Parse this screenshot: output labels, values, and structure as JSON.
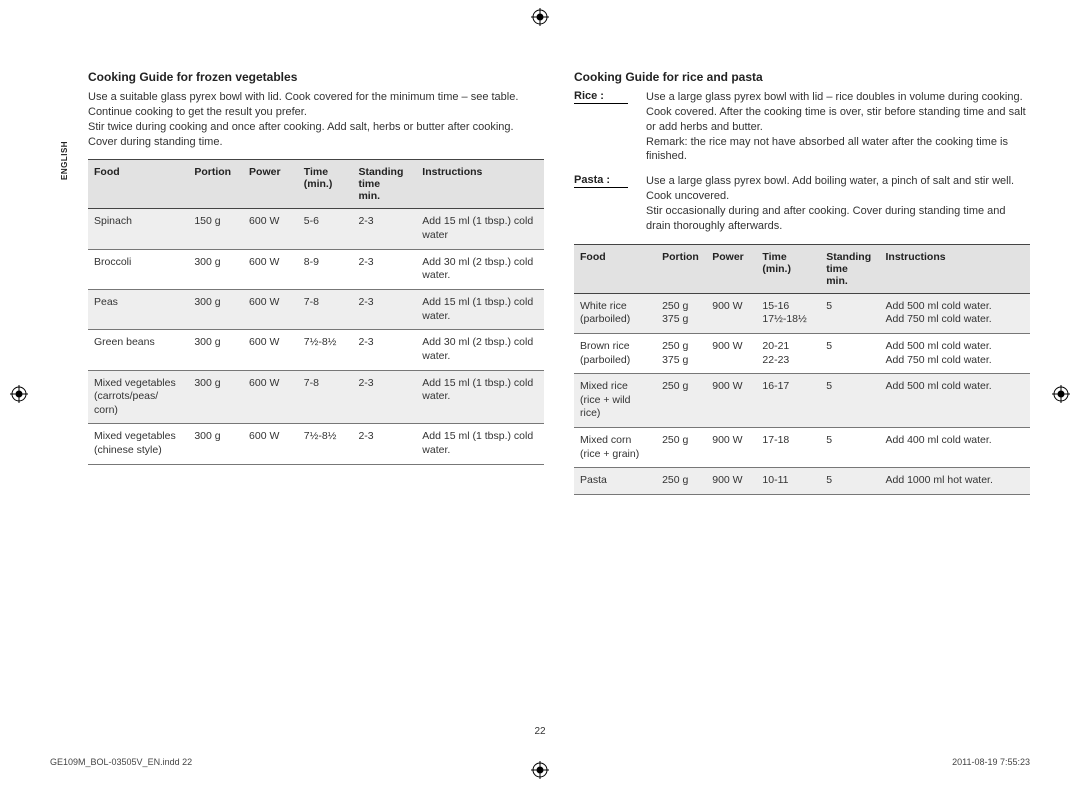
{
  "sidebar_language": "ENGLISH",
  "page_number": "22",
  "footer": {
    "file": "GE109M_BOL-03505V_EN.indd   22",
    "timestamp": "2011-08-19   7:55:23"
  },
  "crop_mark_color": "#000000",
  "left": {
    "title": "Cooking Guide for frozen vegetables",
    "intro": "Use a suitable glass pyrex bowl with lid. Cook covered for the minimum time – see table. Continue cooking to get the result you prefer.\nStir twice during cooking and once after cooking. Add salt, herbs or butter after cooking. Cover during standing time.",
    "table": {
      "columns": [
        "Food",
        "Portion",
        "Power",
        "Time\n(min.)",
        "Standing\ntime\nmin.",
        "Instructions"
      ],
      "col_widths": [
        "22%",
        "12%",
        "12%",
        "12%",
        "14%",
        "28%"
      ],
      "rows": [
        [
          "Spinach",
          "150 g",
          "600 W",
          "5-6",
          "2-3",
          "Add 15 ml (1 tbsp.) cold water"
        ],
        [
          "Broccoli",
          "300 g",
          "600 W",
          "8-9",
          "2-3",
          "Add 30 ml (2 tbsp.) cold water."
        ],
        [
          "Peas",
          "300 g",
          "600 W",
          "7-8",
          "2-3",
          "Add 15 ml (1 tbsp.) cold water."
        ],
        [
          "Green beans",
          "300 g",
          "600 W",
          "7½-8½",
          "2-3",
          "Add 30 ml (2 tbsp.) cold water."
        ],
        [
          "Mixed vegetables (carrots/peas/ corn)",
          "300 g",
          "600 W",
          "7-8",
          "2-3",
          "Add 15 ml (1 tbsp.) cold water."
        ],
        [
          "Mixed vegetables (chinese style)",
          "300 g",
          "600 W",
          "7½-8½",
          "2-3",
          "Add 15 ml (1 tbsp.) cold water."
        ]
      ]
    }
  },
  "right": {
    "title": "Cooking Guide for rice and pasta",
    "desc": [
      {
        "label": "Rice :",
        "text": "Use a large glass pyrex bowl with lid – rice doubles in volume during cooking. Cook covered. After the cooking time is over, stir before standing time and salt or add herbs and butter.\nRemark: the rice may not have absorbed all water after the cooking time is finished."
      },
      {
        "label": "Pasta :",
        "text": "Use a large glass pyrex bowl. Add boiling water, a pinch of salt and stir well. Cook uncovered.\nStir occasionally during and after cooking. Cover during standing time and drain thoroughly afterwards."
      }
    ],
    "table": {
      "columns": [
        "Food",
        "Portion",
        "Power",
        "Time\n(min.)",
        "Standing\ntime\nmin.",
        "Instructions"
      ],
      "col_widths": [
        "18%",
        "11%",
        "11%",
        "14%",
        "13%",
        "33%"
      ],
      "rows": [
        [
          "White rice (parboiled)",
          "250 g\n375 g",
          "900 W",
          "15-16\n17½-18½",
          "5",
          "Add 500 ml cold water.\nAdd 750 ml cold water."
        ],
        [
          "Brown rice (parboiled)",
          "250 g\n375 g",
          "900 W",
          "20-21\n22-23",
          "5",
          "Add 500 ml cold water.\nAdd 750 ml cold water."
        ],
        [
          "Mixed rice (rice + wild rice)",
          "250 g",
          "900 W",
          "16-17",
          "5",
          "Add 500 ml cold water."
        ],
        [
          "Mixed corn (rice + grain)",
          "250 g",
          "900 W",
          "17-18",
          "5",
          "Add 400 ml cold water."
        ],
        [
          "Pasta",
          "250 g",
          "900 W",
          "10-11",
          "5",
          "Add 1000 ml hot water."
        ]
      ]
    }
  }
}
